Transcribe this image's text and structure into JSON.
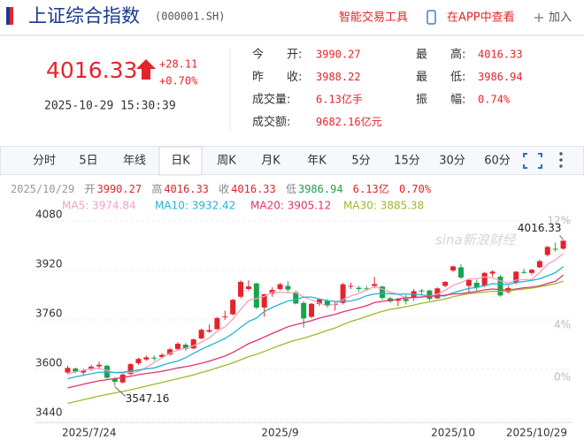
{
  "header": {
    "title": "上证综合指数",
    "code": "(000001.SH)",
    "tools": "智能交易工具",
    "app": "在APP中查看",
    "add": "加入"
  },
  "quote": {
    "price": "4016.33",
    "change": "+28.11",
    "change_pct": "+0.70%",
    "time": "2025-10-29 15:30:39",
    "fields": [
      {
        "label": "今　　开:",
        "value": "3990.27"
      },
      {
        "label": "昨　　收:",
        "value": "3988.22"
      },
      {
        "label": "成交量:",
        "value": "6.13亿手"
      },
      {
        "label": "成交额:",
        "value": "9682.16亿元"
      },
      {
        "label": "最　　高:",
        "value": "4016.33"
      },
      {
        "label": "最　　低:",
        "value": "3986.94"
      },
      {
        "label": "振　　幅:",
        "value": "0.74%"
      }
    ]
  },
  "tabs": [
    "分时",
    "5日",
    "年线",
    "日K",
    "周K",
    "月K",
    "年K",
    "5分",
    "15分",
    "30分",
    "60分"
  ],
  "info": {
    "date": "2025/10/29",
    "items": [
      {
        "label": "开",
        "value": "3990.27"
      },
      {
        "label": "高",
        "value": "4016.33"
      },
      {
        "label": "收",
        "value": "4016.33"
      },
      {
        "label": "低",
        "value": "3986.94"
      },
      {
        "value": "6.13亿"
      },
      {
        "value": "0.70%"
      }
    ]
  },
  "watermark": "sina新浪财经",
  "chart_data": {
    "type": "candlestick",
    "categories": [
      "2025/7/24",
      null,
      null,
      null,
      null,
      null,
      null,
      null,
      null,
      null,
      null,
      null,
      null,
      null,
      null,
      null,
      null,
      null,
      null,
      null,
      null,
      null,
      null,
      null,
      null,
      null,
      null,
      "2025/9",
      null,
      null,
      null,
      null,
      null,
      null,
      null,
      null,
      null,
      null,
      null,
      null,
      null,
      null,
      null,
      null,
      null,
      null,
      null,
      null,
      null,
      "2025/10",
      null,
      null,
      null,
      null,
      null,
      null,
      null,
      null,
      null,
      null,
      null,
      null,
      null,
      "2025/10/29"
    ],
    "open": [
      3590,
      3603,
      3590,
      3600,
      3610,
      3612,
      3570,
      3558,
      3585,
      3620,
      3632,
      3638,
      3640,
      3648,
      3666,
      3680,
      3668,
      3700,
      3722,
      3730,
      3770,
      3778,
      3835,
      3860,
      3878,
      3800,
      3845,
      3860,
      3870,
      3850,
      3815,
      3770,
      3812,
      3822,
      3810,
      3815,
      3870,
      3864,
      3862,
      3870,
      3868,
      3830,
      3822,
      3828,
      3830,
      3855,
      3855,
      3830,
      3870,
      3920,
      3930,
      3870,
      3880,
      3870,
      3910,
      3900,
      3850,
      3880,
      3915,
      3912,
      3930,
      3970,
      3990,
      3990.27
    ],
    "high": [
      3612,
      3606,
      3602,
      3615,
      3625,
      3615,
      3575,
      3588,
      3620,
      3638,
      3645,
      3645,
      3652,
      3670,
      3688,
      3685,
      3700,
      3732,
      3745,
      3770,
      3790,
      3828,
      3888,
      3888,
      3880,
      3845,
      3865,
      3880,
      3885,
      3855,
      3820,
      3815,
      3830,
      3828,
      3818,
      3880,
      3880,
      3870,
      3870,
      3899,
      3870,
      3835,
      3832,
      3840,
      3860,
      3860,
      3858,
      3865,
      3885,
      3936,
      3940,
      3892,
      3890,
      3915,
      3920,
      3905,
      3870,
      3918,
      3925,
      3925,
      3955,
      3999,
      4010,
      4016.33
    ],
    "low": [
      3585,
      3588,
      3582,
      3595,
      3600,
      3570,
      3547.16,
      3555,
      3582,
      3615,
      3628,
      3628,
      3635,
      3645,
      3660,
      3660,
      3665,
      3698,
      3718,
      3728,
      3760,
      3775,
      3830,
      3855,
      3795,
      3770,
      3835,
      3855,
      3850,
      3810,
      3735,
      3765,
      3805,
      3800,
      3790,
      3810,
      3860,
      3850,
      3855,
      3862,
      3825,
      3815,
      3805,
      3810,
      3822,
      3840,
      3822,
      3828,
      3865,
      3915,
      3892,
      3850,
      3855,
      3866,
      3900,
      3835,
      3845,
      3875,
      3908,
      3905,
      3928,
      3965,
      3980,
      3986.94
    ],
    "close": [
      3605,
      3593,
      3597,
      3609,
      3615,
      3573,
      3560,
      3583,
      3617,
      3634,
      3639,
      3635,
      3647,
      3665,
      3683,
      3666,
      3697,
      3728,
      3727,
      3766,
      3771,
      3825,
      3883,
      3868,
      3800,
      3843,
      3857,
      3875,
      3858,
      3813,
      3765,
      3812,
      3826,
      3807,
      3812,
      3875,
      3870,
      3860,
      3861,
      3876,
      3831,
      3820,
      3828,
      3821,
      3853,
      3853,
      3828,
      3862,
      3883,
      3933,
      3897,
      3889,
      3865,
      3912,
      3916,
      3839,
      3863,
      3916,
      3914,
      3922,
      3950,
      3996,
      3988,
      4016.33
    ],
    "up_color": "#e4242b",
    "down_color": "#1aa34a",
    "series": [
      {
        "name": "MA5: 3974.84",
        "color": "#f4a0c4",
        "values": [
          3585,
          3592,
          3597,
          3602,
          3604,
          3597,
          3589,
          3588,
          3590,
          3593,
          3607,
          3622,
          3638,
          3652,
          3663,
          3668,
          3677,
          3688,
          3702,
          3723,
          3738,
          3763,
          3794,
          3823,
          3829,
          3836,
          3850,
          3849,
          3847,
          3849,
          3834,
          3825,
          3815,
          3805,
          3812,
          3826,
          3838,
          3845,
          3856,
          3868,
          3860,
          3850,
          3843,
          3831,
          3831,
          3835,
          3837,
          3843,
          3856,
          3872,
          3881,
          3893,
          3893,
          3899,
          3896,
          3886,
          3879,
          3889,
          3890,
          3891,
          3913,
          3940,
          3954,
          3974.84
        ]
      },
      {
        "name": "MA10: 3932.42",
        "color": "#22b4d4",
        "values": [
          3570,
          3576,
          3581,
          3586,
          3591,
          3591,
          3590,
          3591,
          3595,
          3598,
          3602,
          3605,
          3613,
          3621,
          3627,
          3638,
          3652,
          3665,
          3677,
          3688,
          3700,
          3716,
          3736,
          3755,
          3766,
          3787,
          3800,
          3811,
          3821,
          3826,
          3834,
          3834,
          3828,
          3822,
          3820,
          3820,
          3821,
          3828,
          3838,
          3844,
          3846,
          3845,
          3843,
          3844,
          3843,
          3841,
          3837,
          3837,
          3838,
          3848,
          3855,
          3862,
          3865,
          3871,
          3877,
          3876,
          3874,
          3881,
          3884,
          3888,
          3893,
          3903,
          3913,
          3932.42
        ]
      },
      {
        "name": "MA20: 3905.12",
        "color": "#e2336b",
        "values": [
          3540,
          3546,
          3552,
          3558,
          3563,
          3567,
          3570,
          3574,
          3578,
          3583,
          3587,
          3590,
          3594,
          3599,
          3605,
          3609,
          3614,
          3620,
          3627,
          3635,
          3643,
          3655,
          3669,
          3683,
          3693,
          3705,
          3716,
          3727,
          3738,
          3745,
          3751,
          3758,
          3766,
          3772,
          3778,
          3786,
          3793,
          3799,
          3806,
          3816,
          3820,
          3823,
          3827,
          3832,
          3833,
          3834,
          3836,
          3838,
          3840,
          3844,
          3845,
          3849,
          3852,
          3857,
          3860,
          3858,
          3856,
          3860,
          3864,
          3866,
          3870,
          3878,
          3885,
          3905.12
        ]
      },
      {
        "name": "MA30: 3885.38",
        "color": "#9bba2c",
        "values": [
          3490,
          3496,
          3502,
          3508,
          3514,
          3519,
          3524,
          3529,
          3534,
          3540,
          3546,
          3552,
          3558,
          3564,
          3570,
          3576,
          3582,
          3590,
          3597,
          3605,
          3613,
          3621,
          3631,
          3641,
          3649,
          3658,
          3668,
          3678,
          3687,
          3695,
          3701,
          3709,
          3717,
          3726,
          3734,
          3745,
          3755,
          3763,
          3771,
          3780,
          3788,
          3794,
          3798,
          3803,
          3808,
          3814,
          3818,
          3823,
          3828,
          3835,
          3840,
          3845,
          3847,
          3850,
          3853,
          3852,
          3854,
          3857,
          3860,
          3863,
          3867,
          3872,
          3877,
          3885.38
        ]
      }
    ],
    "ylim": [
      3440,
      4080
    ],
    "yticks": [
      3440,
      3600,
      3760,
      3920,
      4080
    ],
    "y2lim": [
      -3.2,
      12
    ],
    "y2ticks": [
      {
        "value": 0,
        "label": "0%"
      },
      {
        "value": 4,
        "label": "4%"
      },
      {
        "value": 12,
        "label": "12%"
      }
    ],
    "annotations": [
      3547.16,
      4016.33
    ],
    "grid": true
  }
}
